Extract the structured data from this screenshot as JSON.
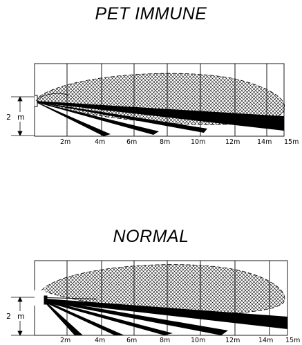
{
  "panels": [
    {
      "title": "PET IMMUNE",
      "height_label": "2",
      "height_unit": "m",
      "ticks": [
        "2m",
        "4m",
        "6m",
        "8m",
        "10m",
        "12m",
        "14m",
        "15m"
      ]
    },
    {
      "title": "NORMAL",
      "height_label": "2",
      "height_unit": "m",
      "ticks": [
        "2m",
        "4m",
        "6m",
        "8m",
        "10m",
        "12m",
        "14m",
        "15m"
      ]
    }
  ]
}
